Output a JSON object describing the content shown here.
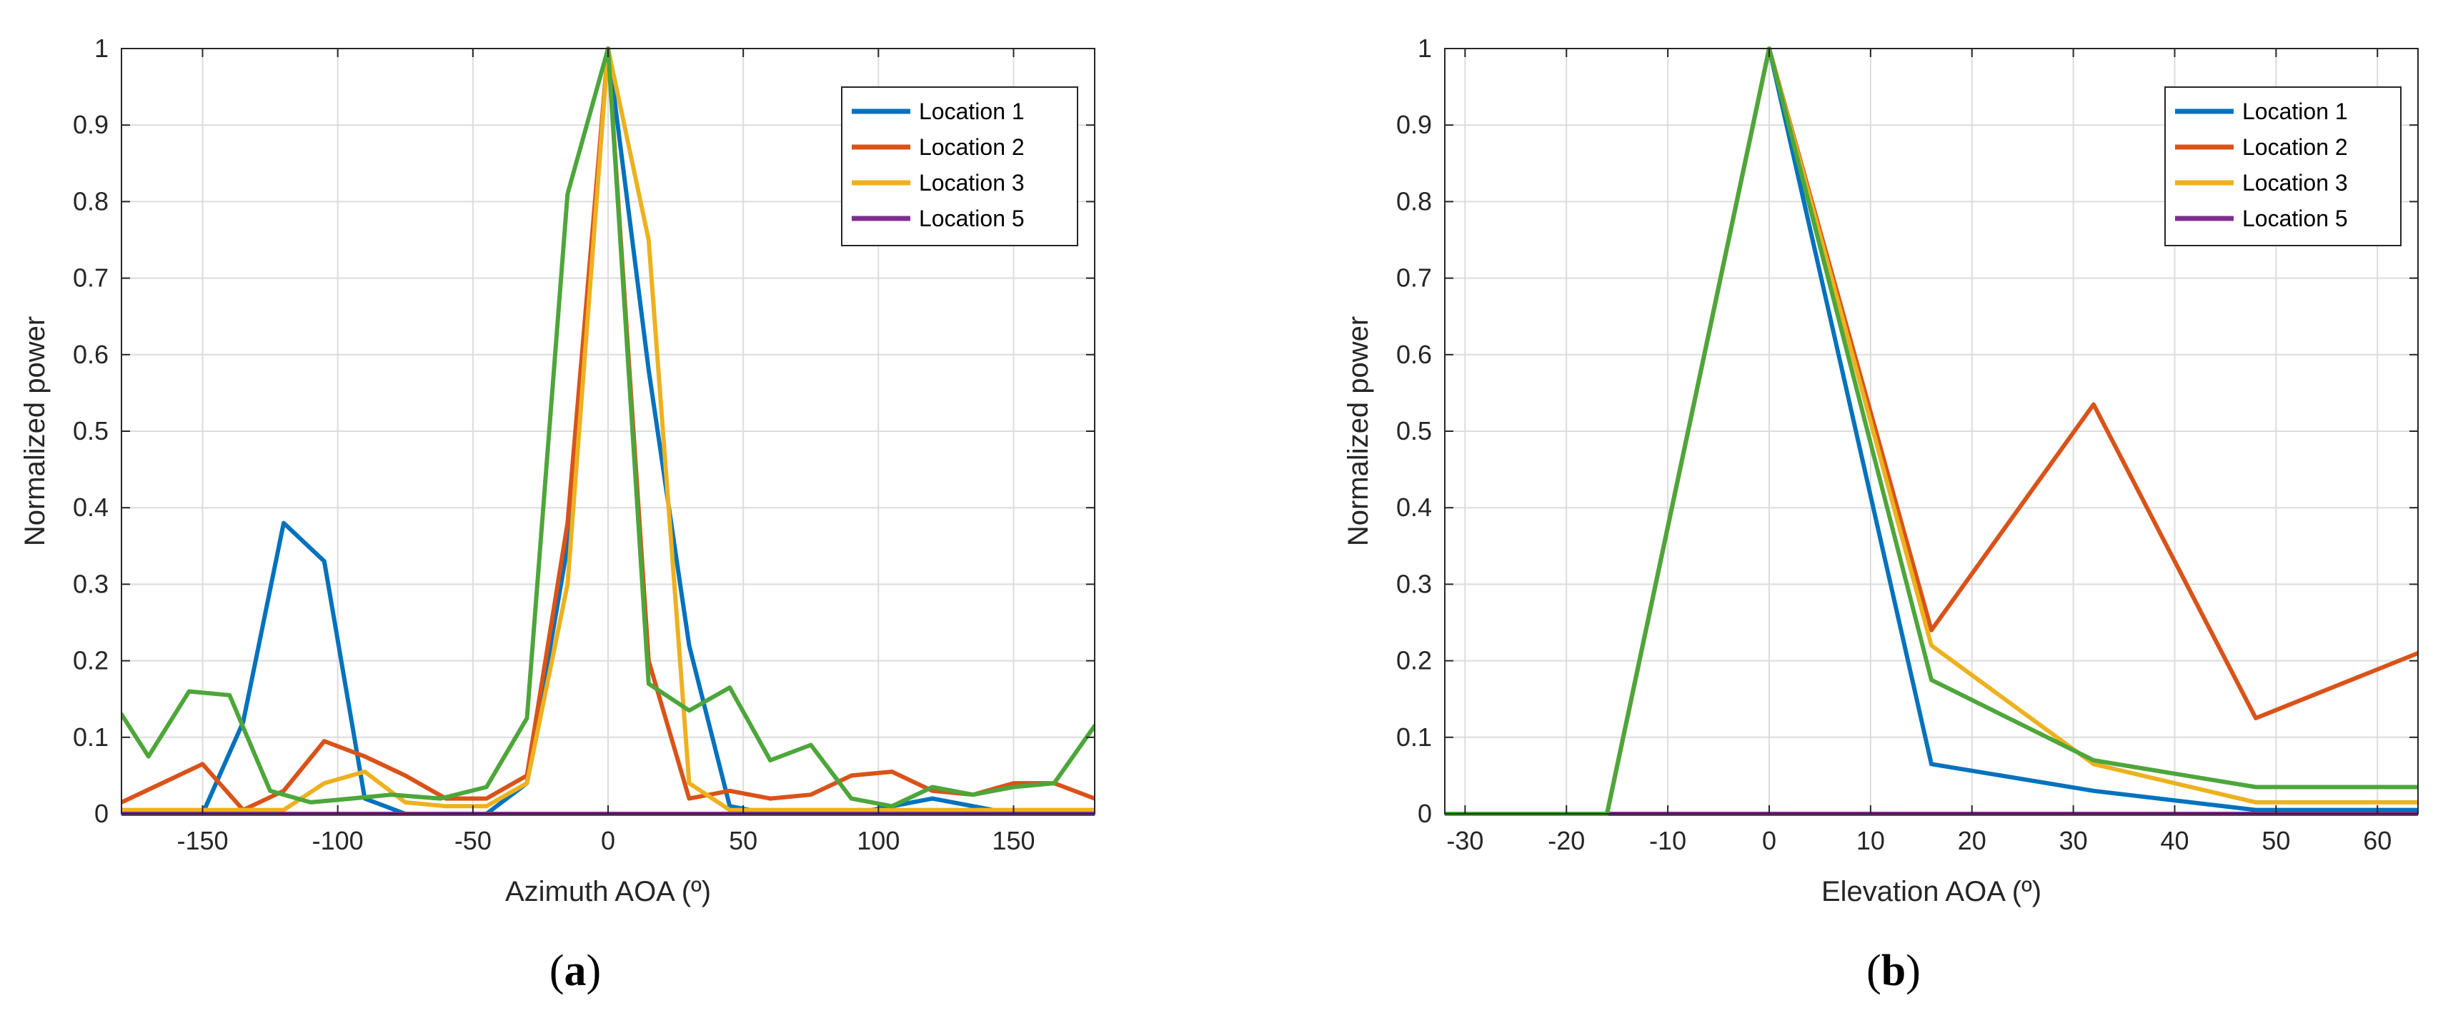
{
  "chart_data": [
    {
      "type": "line",
      "panel_label": "a",
      "xlabel": "Azimuth AOA (º)",
      "ylabel": "Normalized power",
      "xlim": [
        -180,
        180
      ],
      "ylim": [
        0,
        1
      ],
      "xticks": [
        -150,
        -100,
        -50,
        0,
        50,
        100,
        150
      ],
      "yticks": [
        0,
        0.1,
        0.2,
        0.3,
        0.4,
        0.5,
        0.6,
        0.7,
        0.8,
        0.9,
        1
      ],
      "grid": true,
      "legend_position": "top-right",
      "series": [
        {
          "name": "Location 1",
          "color": "#0072BD",
          "x": [
            -180,
            -165,
            -150,
            -135,
            -120,
            -105,
            -90,
            -75,
            -60,
            -45,
            -30,
            -15,
            0,
            15,
            30,
            45,
            60,
            75,
            90,
            105,
            120,
            135,
            150,
            165,
            180
          ],
          "y": [
            0,
            0,
            0,
            0.12,
            0.38,
            0.33,
            0.02,
            0,
            0,
            0,
            0.04,
            0.35,
            1,
            0.58,
            0.22,
            0.01,
            0,
            0,
            0,
            0.01,
            0.02,
            0.01,
            0,
            0,
            0
          ]
        },
        {
          "name": "Location 2",
          "color": "#D95319",
          "x": [
            -180,
            -165,
            -150,
            -135,
            -120,
            -105,
            -90,
            -75,
            -60,
            -45,
            -30,
            -15,
            0,
            15,
            30,
            45,
            60,
            75,
            90,
            105,
            120,
            135,
            150,
            165,
            180
          ],
          "y": [
            0.015,
            0.04,
            0.065,
            0.005,
            0.03,
            0.095,
            0.075,
            0.05,
            0.02,
            0.02,
            0.05,
            0.38,
            1,
            0.2,
            0.02,
            0.03,
            0.02,
            0.025,
            0.05,
            0.055,
            0.03,
            0.025,
            0.04,
            0.04,
            0.02
          ]
        },
        {
          "name": "Location 3",
          "color": "#EDB120",
          "x": [
            -180,
            -165,
            -150,
            -135,
            -120,
            -105,
            -90,
            -75,
            -60,
            -45,
            -30,
            -15,
            0,
            15,
            30,
            45,
            60,
            75,
            90,
            105,
            120,
            135,
            150,
            165,
            180
          ],
          "y": [
            0.005,
            0.005,
            0.005,
            0.005,
            0.005,
            0.04,
            0.055,
            0.015,
            0.01,
            0.01,
            0.04,
            0.3,
            1,
            0.75,
            0.04,
            0.005,
            0.005,
            0.005,
            0.005,
            0.005,
            0.005,
            0.005,
            0.005,
            0.005,
            0.005
          ]
        },
        {
          "name": "Location 5",
          "color": "#7E2F8E",
          "x": [
            -180,
            180
          ],
          "y": [
            0,
            0
          ]
        },
        {
          "name": "",
          "color": "#4DA63A",
          "x": [
            -180,
            -170,
            -155,
            -140,
            -125,
            -110,
            -95,
            -80,
            -62,
            -45,
            -30,
            -15,
            0,
            15,
            30,
            45,
            60,
            75,
            90,
            105,
            120,
            135,
            150,
            165,
            180
          ],
          "y": [
            0.13,
            0.075,
            0.16,
            0.155,
            0.03,
            0.015,
            0.02,
            0.025,
            0.02,
            0.035,
            0.125,
            0.81,
            1,
            0.17,
            0.135,
            0.165,
            0.07,
            0.09,
            0.02,
            0.01,
            0.035,
            0.025,
            0.035,
            0.04,
            0.115
          ]
        }
      ]
    },
    {
      "type": "line",
      "panel_label": "b",
      "xlabel": "Elevation AOA (º)",
      "ylabel": "Normalized power",
      "xlim": [
        -32,
        64
      ],
      "ylim": [
        0,
        1
      ],
      "xticks": [
        -30,
        -20,
        -10,
        0,
        10,
        20,
        30,
        40,
        50,
        60
      ],
      "yticks": [
        0,
        0.1,
        0.2,
        0.3,
        0.4,
        0.5,
        0.6,
        0.7,
        0.8,
        0.9,
        1
      ],
      "grid": true,
      "legend_position": "top-right",
      "series": [
        {
          "name": "Location 1",
          "color": "#0072BD",
          "x": [
            -32,
            -16,
            0,
            16,
            32,
            48,
            64
          ],
          "y": [
            0,
            0,
            1,
            0.065,
            0.03,
            0.005,
            0.005
          ]
        },
        {
          "name": "Location 2",
          "color": "#D95319",
          "x": [
            -32,
            -16,
            0,
            16,
            32,
            48,
            64
          ],
          "y": [
            0,
            0,
            1,
            0.24,
            0.535,
            0.125,
            0.21
          ]
        },
        {
          "name": "Location 3",
          "color": "#EDB120",
          "x": [
            -32,
            -16,
            0,
            16,
            32,
            48,
            64
          ],
          "y": [
            0,
            0,
            1,
            0.22,
            0.065,
            0.015,
            0.015
          ]
        },
        {
          "name": "Location 5",
          "color": "#7E2F8E",
          "x": [
            -32,
            64
          ],
          "y": [
            0,
            0
          ]
        },
        {
          "name": "",
          "color": "#4DA63A",
          "x": [
            -32,
            -16,
            0,
            16,
            32,
            48,
            64
          ],
          "y": [
            0,
            0,
            1,
            0.175,
            0.07,
            0.035,
            0.035
          ]
        }
      ]
    }
  ]
}
